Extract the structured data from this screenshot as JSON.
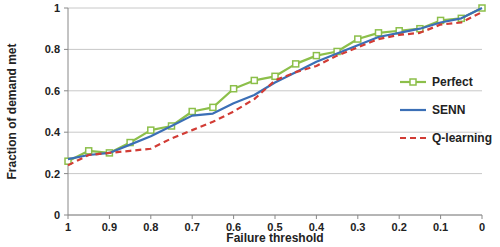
{
  "chart_data": {
    "type": "line",
    "x_label": "Failure threshold",
    "y_label": "Fraction of demand met",
    "x": [
      1,
      0.95,
      0.9,
      0.85,
      0.8,
      0.75,
      0.7,
      0.65,
      0.6,
      0.55,
      0.5,
      0.45,
      0.4,
      0.35,
      0.3,
      0.25,
      0.2,
      0.15,
      0.1,
      0.05,
      0
    ],
    "series": [
      {
        "name": "Perfect",
        "color": "#8cbf4a",
        "marker": "square",
        "line_style": "solid",
        "values": [
          0.26,
          0.31,
          0.3,
          0.35,
          0.41,
          0.43,
          0.5,
          0.52,
          0.61,
          0.65,
          0.67,
          0.73,
          0.77,
          0.79,
          0.85,
          0.88,
          0.89,
          0.9,
          0.94,
          0.95,
          1.0
        ]
      },
      {
        "name": "SENN",
        "color": "#3b6fb6",
        "marker": "none",
        "line_style": "solid",
        "values": [
          0.27,
          0.29,
          0.3,
          0.34,
          0.38,
          0.43,
          0.48,
          0.49,
          0.54,
          0.58,
          0.64,
          0.69,
          0.74,
          0.78,
          0.82,
          0.86,
          0.88,
          0.9,
          0.93,
          0.95,
          1.0
        ]
      },
      {
        "name": "Q-learning",
        "color": "#d23c35",
        "marker": "none",
        "line_style": "dashed",
        "values": [
          0.24,
          0.29,
          0.3,
          0.31,
          0.32,
          0.37,
          0.41,
          0.45,
          0.5,
          0.56,
          0.65,
          0.69,
          0.72,
          0.77,
          0.81,
          0.85,
          0.87,
          0.88,
          0.92,
          0.93,
          0.98
        ]
      }
    ],
    "xlim": [
      1,
      0
    ],
    "xticks": [
      1,
      0.9,
      0.8,
      0.7,
      0.6,
      0.5,
      0.4,
      0.3,
      0.2,
      0.1,
      0
    ],
    "ylim": [
      0,
      1
    ],
    "yticks": [
      0,
      0.2,
      0.4,
      0.6,
      0.8,
      1
    ],
    "grid": true,
    "legend": "right"
  }
}
